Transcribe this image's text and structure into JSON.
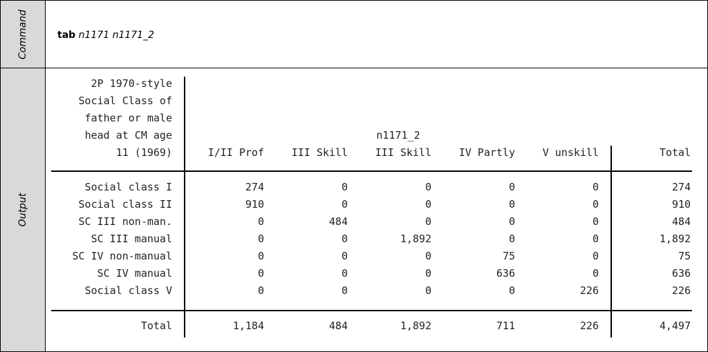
{
  "side": {
    "command_label": "Command",
    "output_label": "Output"
  },
  "command": {
    "keyword": "tab",
    "args": "n1171 n1171_2"
  },
  "table": {
    "row_var_label_lines": [
      "2P 1970-style",
      "Social Class of",
      "father or male",
      "head at CM age",
      "11 (1969)"
    ],
    "col_var": "n1171_2",
    "col_headers": [
      "I/II Prof",
      "III Skill",
      "III Skill",
      "IV Partly",
      "V unskill",
      "Total"
    ],
    "rows": [
      {
        "label": "Social class I",
        "values": [
          "274",
          "0",
          "0",
          "0",
          "0",
          "274"
        ]
      },
      {
        "label": "Social class II",
        "values": [
          "910",
          "0",
          "0",
          "0",
          "0",
          "910"
        ]
      },
      {
        "label": "SC III non-man.",
        "values": [
          "0",
          "484",
          "0",
          "0",
          "0",
          "484"
        ]
      },
      {
        "label": "SC III manual",
        "values": [
          "0",
          "0",
          "1,892",
          "0",
          "0",
          "1,892"
        ]
      },
      {
        "label": "SC IV non-manual",
        "values": [
          "0",
          "0",
          "0",
          "75",
          "0",
          "75"
        ]
      },
      {
        "label": "SC IV manual",
        "values": [
          "0",
          "0",
          "0",
          "636",
          "0",
          "636"
        ]
      },
      {
        "label": "Social class V",
        "values": [
          "0",
          "0",
          "0",
          "0",
          "226",
          "226"
        ]
      }
    ],
    "total": {
      "label": "Total",
      "values": [
        "1,184",
        "484",
        "1,892",
        "711",
        "226",
        "4,497"
      ]
    }
  }
}
